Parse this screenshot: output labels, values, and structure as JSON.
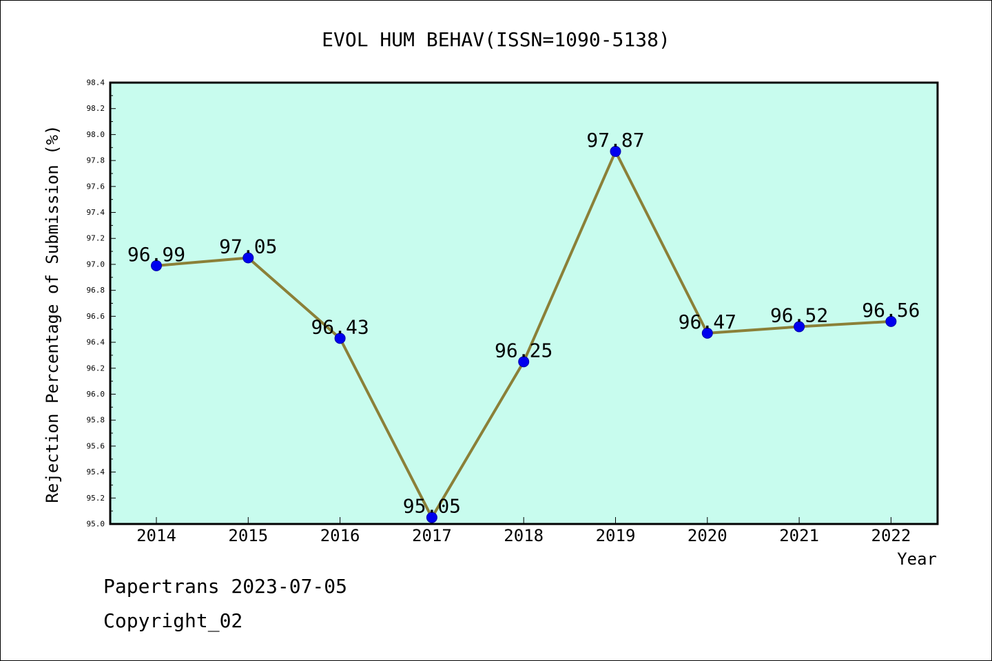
{
  "chart_data": {
    "type": "line",
    "title": "EVOL HUM BEHAV(ISSN=1090-5138)",
    "xlabel": "Year",
    "ylabel": "Rejection Percentage of Submission (%)",
    "categories": [
      "2014",
      "2015",
      "2016",
      "2017",
      "2018",
      "2019",
      "2020",
      "2021",
      "2022"
    ],
    "series": [
      {
        "values": [
          96.99,
          97.05,
          96.43,
          95.05,
          96.25,
          97.87,
          96.47,
          96.52,
          96.56
        ]
      }
    ],
    "data_labels": [
      "96.99",
      "97.05",
      "96.43",
      "95.05",
      "96.25",
      "97.87",
      "96.47",
      "96.52",
      "96.56"
    ],
    "ylim": [
      95.0,
      98.4
    ],
    "yticks": [
      "95.0",
      "95.2",
      "95.4",
      "95.6",
      "95.8",
      "96.0",
      "96.2",
      "96.4",
      "96.6",
      "96.8",
      "97.0",
      "97.2",
      "97.4",
      "97.6",
      "97.8",
      "98.0",
      "98.2",
      "98.4"
    ],
    "grid": false,
    "colors": {
      "plot_background": "#c8fcee",
      "line": "#8b8038",
      "marker": "#0000ee"
    }
  },
  "footer": {
    "line1": "Papertrans 2023-07-05",
    "line2": "Copyright_02"
  }
}
